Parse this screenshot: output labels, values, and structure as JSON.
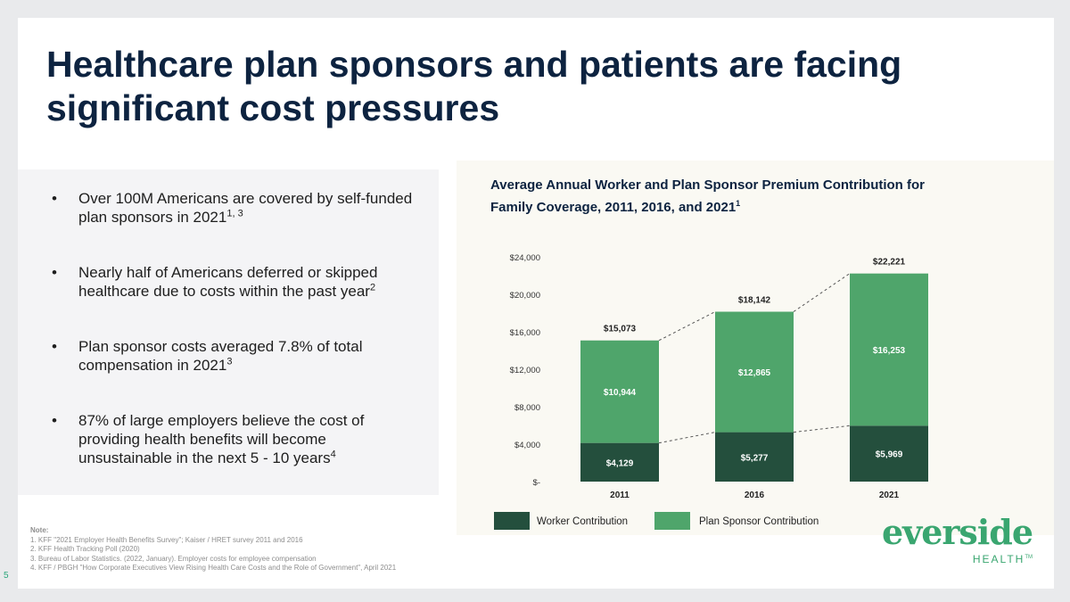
{
  "slide": {
    "title": "Healthcare plan sponsors and patients are facing significant cost pressures",
    "page_number": "5"
  },
  "bullets": [
    {
      "text": "Over 100M Americans are covered by self-funded plan sponsors in 2021",
      "sup": "1, 3"
    },
    {
      "text": "Nearly half of Americans deferred or skipped healthcare due to costs within the past year",
      "sup": "2"
    },
    {
      "text": "Plan sponsor costs averaged 7.8% of total compensation in 2021",
      "sup": "3"
    },
    {
      "text": "87% of large employers believe the cost of providing health benefits will become unsustainable in the next 5 - 10 years",
      "sup": "4"
    }
  ],
  "notes": {
    "heading": "Note:",
    "items": [
      "1. KFF \"2021 Employer Health Benefits Survey\"; Kaiser / HRET survey 2011 and 2016",
      "2. KFF Health Tracking Poll (2020)",
      "3. Bureau of Labor Statistics. (2022, January). Employer costs for employee compensation",
      "4. KFF / PBGH \"How Corporate Executives View Rising Health Care Costs and the Role of Government\", April 2021"
    ]
  },
  "logo": {
    "word": "everside",
    "sub": "HEALTH",
    "tm": "TM"
  },
  "chart_data": {
    "type": "bar",
    "stacked": true,
    "title": "Average Annual Worker and Plan Sponsor Premium Contribution for Family Coverage, 2011, 2016, and 2021",
    "title_sup": "1",
    "categories": [
      "2011",
      "2016",
      "2021"
    ],
    "series": [
      {
        "name": "Worker Contribution",
        "values": [
          4129,
          5277,
          5969
        ],
        "labels": [
          "$4,129",
          "$5,277",
          "$5,969"
        ],
        "color": "#244f3d"
      },
      {
        "name": "Plan Sponsor Contribution",
        "values": [
          10944,
          12865,
          16253
        ],
        "labels": [
          "$10,944",
          "$12,865",
          "$16,253"
        ],
        "color": "#4fa56b"
      }
    ],
    "totals": [
      15073,
      18142,
      22221
    ],
    "total_labels": [
      "$15,073",
      "$18,142",
      "$22,221"
    ],
    "yticks": [
      0,
      4000,
      8000,
      12000,
      16000,
      20000,
      24000
    ],
    "ytick_labels": [
      "$-",
      "$4,000",
      "$8,000",
      "$12,000",
      "$16,000",
      "$20,000",
      "$24,000"
    ],
    "ylim": [
      0,
      24000
    ],
    "xlabel": "",
    "ylabel": "",
    "grid": false,
    "legend_position": "bottom",
    "connector_lines": "dashed"
  }
}
